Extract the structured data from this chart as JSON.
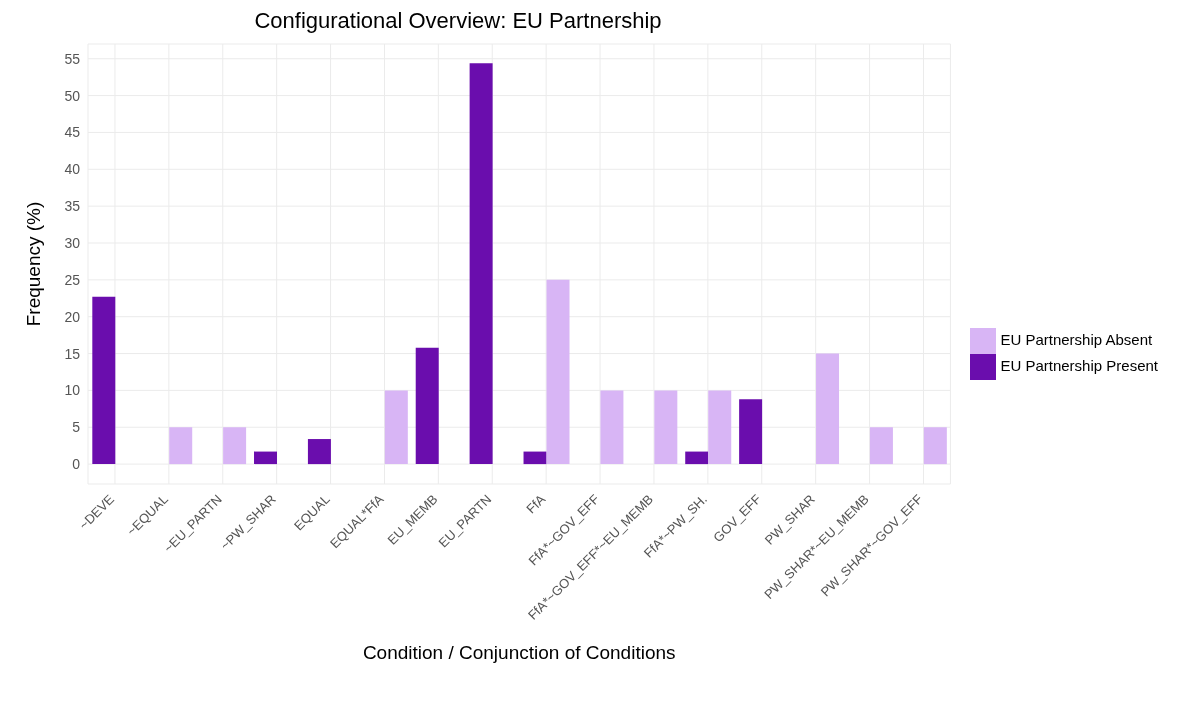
{
  "chart_data": {
    "type": "bar",
    "title": "Configurational Overview: EU Partnership",
    "xlabel": "Condition / Conjunction of Conditions",
    "ylabel": "Frequency (%)",
    "categories": [
      "~DEVE",
      "~EQUAL",
      "~EU_PARTN",
      "~PW_SHAR",
      "EQUAL",
      "EQUAL*FfA",
      "EU_MEMB",
      "EU_PARTN",
      "FfA",
      "FfA*~GOV_EFF",
      "FfA*~GOV_EFF*~EU_MEMB",
      "FfA*~PW_SH.",
      "GOV_EFF",
      "PW_SHAR",
      "PW_SHAR*~EU_MEMB",
      "PW_SHAR*~GOV_EFF"
    ],
    "series": [
      {
        "name": "EU Partnership Present",
        "color": "#6a0dad",
        "values": [
          22.7,
          null,
          null,
          1.7,
          3.4,
          null,
          15.8,
          54.4,
          1.7,
          null,
          null,
          1.7,
          8.8,
          null,
          null,
          null
        ]
      },
      {
        "name": "EU Partnership Absent",
        "color": "#d8b5f5",
        "values": [
          null,
          5,
          5,
          null,
          null,
          10,
          null,
          null,
          25,
          10,
          10,
          10,
          null,
          15,
          5,
          5
        ]
      }
    ],
    "ylim": [
      -2.7,
      57
    ],
    "yticks": [
      0,
      5,
      10,
      15,
      20,
      25,
      30,
      35,
      40,
      45,
      50,
      55
    ],
    "grid": true,
    "legend": "right"
  }
}
